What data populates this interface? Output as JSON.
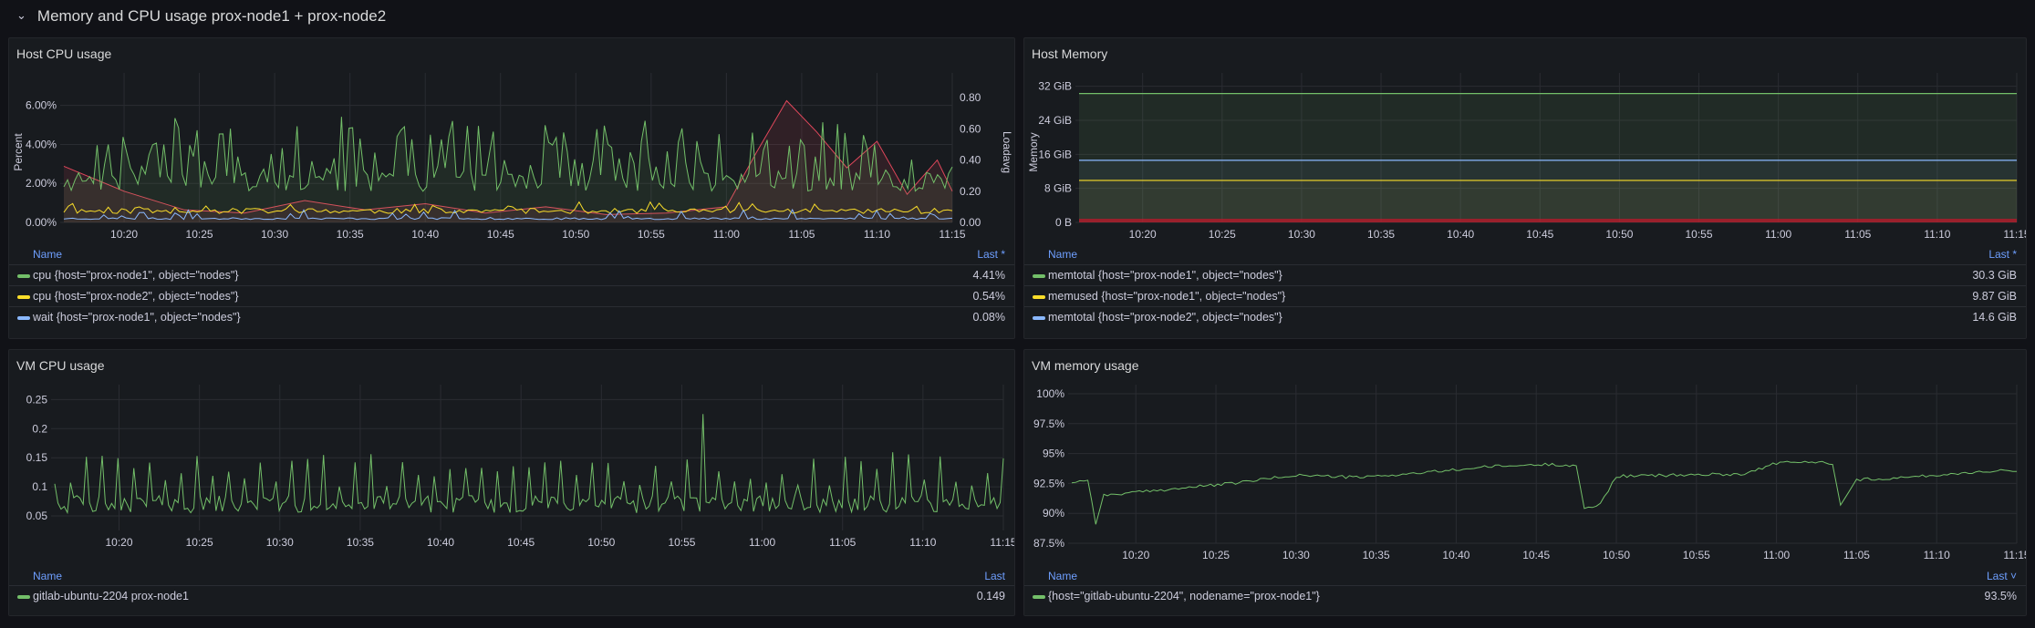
{
  "row": {
    "title": "Memory and CPU usage prox-node1 + prox-node2"
  },
  "panels": {
    "host_cpu": {
      "title": "Host CPU usage",
      "legend": {
        "name_header": "Name",
        "value_header": "Last *",
        "items": [
          {
            "label": "cpu {host=\"prox-node1\", object=\"nodes\"}",
            "value": "4.41%",
            "color": "#73bf69"
          },
          {
            "label": "cpu {host=\"prox-node2\", object=\"nodes\"}",
            "value": "0.54%",
            "color": "#fade2a"
          },
          {
            "label": "wait {host=\"prox-node1\", object=\"nodes\"}",
            "value": "0.08%",
            "color": "#8ab8ff"
          }
        ]
      }
    },
    "host_memory": {
      "title": "Host Memory",
      "legend": {
        "name_header": "Name",
        "value_header": "Last *",
        "items": [
          {
            "label": "memtotal {host=\"prox-node1\", object=\"nodes\"}",
            "value": "30.3 GiB",
            "color": "#73bf69"
          },
          {
            "label": "memused {host=\"prox-node1\", object=\"nodes\"}",
            "value": "9.87 GiB",
            "color": "#fade2a"
          },
          {
            "label": "memtotal {host=\"prox-node2\", object=\"nodes\"}",
            "value": "14.6 GiB",
            "color": "#8ab8ff"
          }
        ]
      }
    },
    "vm_cpu": {
      "title": "VM CPU usage",
      "legend": {
        "name_header": "Name",
        "value_header": "Last",
        "items": [
          {
            "label": "gitlab-ubuntu-2204 prox-node1",
            "value": "0.149",
            "color": "#73bf69"
          }
        ]
      }
    },
    "vm_memory": {
      "title": "VM memory usage",
      "legend": {
        "name_header": "Name",
        "value_header": "Last ˅",
        "items": [
          {
            "label": "{host=\"gitlab-ubuntu-2204\", nodename=\"prox-node1\"}",
            "value": "93.5%",
            "color": "#73bf69"
          }
        ]
      }
    }
  },
  "chart_data": [
    {
      "type": "line",
      "title": "Host CPU usage",
      "x_ticks": [
        "10:20",
        "10:25",
        "10:30",
        "10:35",
        "10:40",
        "10:45",
        "10:50",
        "10:55",
        "11:00",
        "11:05",
        "11:10",
        "11:15"
      ],
      "ylabel": "Percent",
      "y_ticks": [
        "0.00%",
        "2.00%",
        "4.00%",
        "6.00%"
      ],
      "ylim": [
        0,
        7.2
      ],
      "y2label": "Loadavg",
      "y2_ticks": [
        "0.00",
        "0.20",
        "0.40",
        "0.60",
        "0.80"
      ],
      "y2lim": [
        0,
        0.9
      ],
      "series": [
        {
          "name": "cpu {host=\"prox-node1\", object=\"nodes\"}",
          "color": "#73bf69",
          "last": 4.41
        },
        {
          "name": "cpu {host=\"prox-node2\", object=\"nodes\"}",
          "color": "#fade2a",
          "last": 0.54
        },
        {
          "name": "wait {host=\"prox-node1\", object=\"nodes\"}",
          "color": "#8ab8ff",
          "last": 0.08
        }
      ],
      "loadavg": {
        "color": "#e0475b",
        "x": [
          "10:16",
          "10:20",
          "10:24",
          "10:28",
          "10:32",
          "10:36",
          "10:40",
          "10:44",
          "10:48",
          "10:52",
          "10:56",
          "11:00",
          "11:02",
          "11:04",
          "11:06",
          "11:08",
          "11:10",
          "11:12",
          "11:14",
          "11:15"
        ],
        "y": [
          0.36,
          0.2,
          0.08,
          0.06,
          0.14,
          0.08,
          0.12,
          0.06,
          0.1,
          0.05,
          0.06,
          0.1,
          0.45,
          0.78,
          0.58,
          0.35,
          0.52,
          0.18,
          0.4,
          0.2
        ]
      }
    },
    {
      "type": "line",
      "title": "Host Memory",
      "x_ticks": [
        "10:20",
        "10:25",
        "10:30",
        "10:35",
        "10:40",
        "10:45",
        "10:50",
        "10:55",
        "11:00",
        "11:05",
        "11:10",
        "11:15"
      ],
      "ylabel": "Memory",
      "y_ticks": [
        "0 B",
        "8 GiB",
        "16 GiB",
        "24 GiB",
        "32 GiB"
      ],
      "ylim": [
        0,
        33
      ],
      "series": [
        {
          "name": "memtotal {host=\"prox-node1\", object=\"nodes\"}",
          "color": "#73bf69",
          "value": 30.3
        },
        {
          "name": "memused {host=\"prox-node1\", object=\"nodes\"}",
          "color": "#fade2a",
          "value": 9.87
        },
        {
          "name": "memtotal {host=\"prox-node2\", object=\"nodes\"}",
          "color": "#8ab8ff",
          "value": 14.6
        }
      ]
    },
    {
      "type": "line",
      "title": "VM CPU usage",
      "x_ticks": [
        "10:20",
        "10:25",
        "10:30",
        "10:35",
        "10:40",
        "10:45",
        "10:50",
        "10:55",
        "11:00",
        "11:05",
        "11:10",
        "11:15"
      ],
      "y_ticks": [
        "0.05",
        "0.1",
        "0.15",
        "0.2",
        "0.25"
      ],
      "ylim": [
        0.025,
        0.26
      ],
      "series": [
        {
          "name": "gitlab-ubuntu-2204 prox-node1",
          "color": "#73bf69",
          "last": 0.149
        }
      ]
    },
    {
      "type": "line",
      "title": "VM memory usage",
      "x_ticks": [
        "10:20",
        "10:25",
        "10:30",
        "10:35",
        "10:40",
        "10:45",
        "10:50",
        "10:55",
        "11:00",
        "11:05",
        "11:10",
        "11:15"
      ],
      "y_ticks": [
        "87.5%",
        "90%",
        "92.5%",
        "95%",
        "97.5%",
        "100%"
      ],
      "ylim": [
        87.5,
        100
      ],
      "series": [
        {
          "name": "{host=\"gitlab-ubuntu-2204\", nodename=\"prox-node1\"}",
          "color": "#73bf69",
          "last": 93.5,
          "x": [
            "10:16",
            "10:17",
            "10:17:30",
            "10:18",
            "10:22",
            "10:26",
            "10:30",
            "10:34",
            "10:38",
            "10:42",
            "10:46",
            "10:47:30",
            "10:48",
            "10:49",
            "10:50",
            "10:54",
            "10:58",
            "11:00",
            "11:02",
            "11:03:30",
            "11:04",
            "11:05",
            "11:08",
            "11:12",
            "11:14",
            "11:15"
          ],
          "y": [
            92.6,
            92.8,
            89.2,
            91.5,
            92.0,
            92.5,
            93.2,
            93.0,
            93.4,
            93.9,
            94.1,
            94.0,
            90.3,
            90.8,
            93.1,
            93.2,
            93.3,
            94.2,
            94.3,
            94.2,
            90.8,
            92.8,
            93.0,
            93.4,
            93.6,
            93.5
          ]
        }
      ]
    }
  ]
}
